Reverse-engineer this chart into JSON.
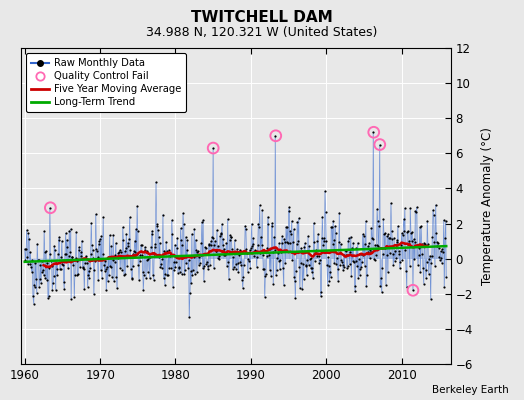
{
  "title": "TWITCHELL DAM",
  "subtitle": "34.988 N, 120.321 W (United States)",
  "ylabel": "Temperature Anomaly (°C)",
  "attribution": "Berkeley Earth",
  "xlim": [
    1959.5,
    2016.5
  ],
  "ylim": [
    -6,
    12
  ],
  "yticks": [
    -6,
    -4,
    -2,
    0,
    2,
    4,
    6,
    8,
    10,
    12
  ],
  "xticks": [
    1960,
    1970,
    1980,
    1990,
    2000,
    2010
  ],
  "bg_color": "#e8e8e8",
  "raw_color": "#3366cc",
  "raw_dot_color": "#000000",
  "qc_color": "#ff69b4",
  "moving_avg_color": "#cc0000",
  "trend_color": "#00aa00",
  "seed": 42,
  "n_years": 56,
  "start_year": 1960,
  "trend_slope": 0.016,
  "trend_intercept": -0.18,
  "qc_fail_points": [
    {
      "year": 1963.4,
      "value": 2.9
    },
    {
      "year": 1985.0,
      "value": 6.3
    },
    {
      "year": 1993.3,
      "value": 7.0
    },
    {
      "year": 2006.3,
      "value": 7.2
    },
    {
      "year": 2007.1,
      "value": 6.5
    },
    {
      "year": 2011.5,
      "value": -1.8
    }
  ]
}
